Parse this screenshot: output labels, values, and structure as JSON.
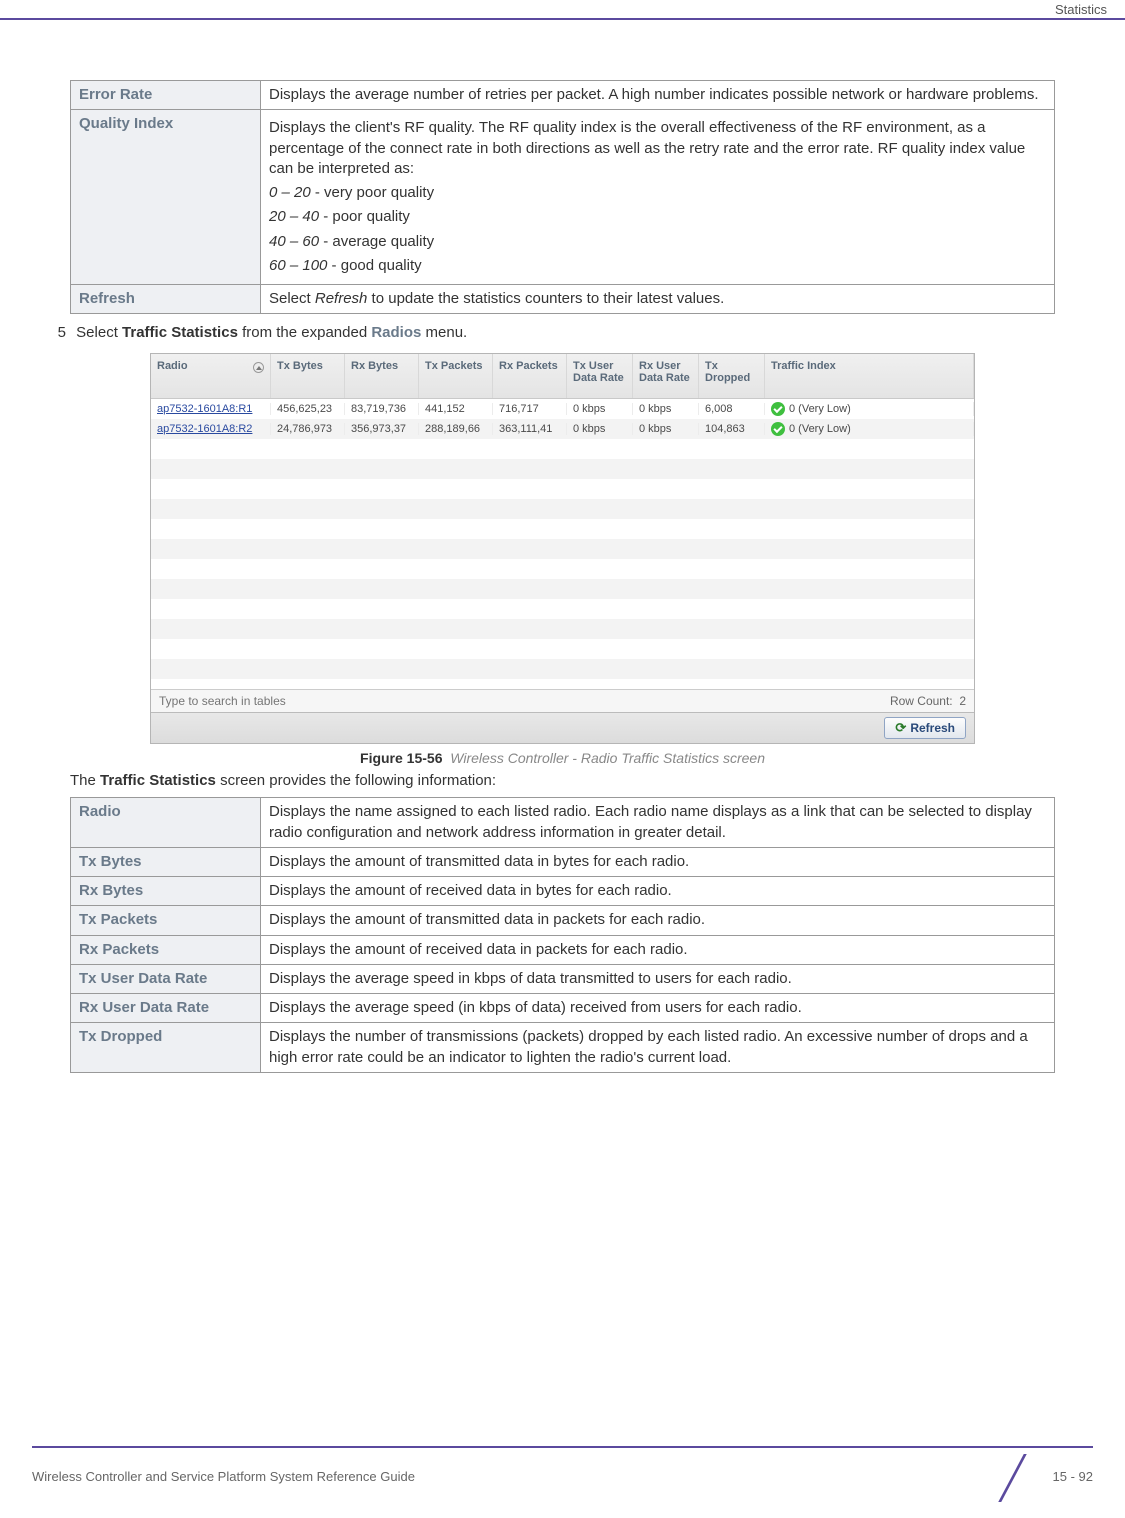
{
  "header": {
    "section_label": "Statistics"
  },
  "table1": {
    "colors": {
      "label_bg": "#eef0f3",
      "label_fg": "#6a7a8a",
      "border": "#999999"
    },
    "rows": [
      {
        "label": "Error Rate",
        "body": "Displays the average number of retries per packet. A high number indicates possible network or hardware problems."
      },
      {
        "label": "Quality Index",
        "intro": "Displays the client's RF quality. The RF quality index is the overall effectiveness of the RF environment, as a percentage of the connect rate in both directions as well as the retry rate and the error rate. RF quality index value can be interpreted as:",
        "ranges": [
          {
            "range": "0 – 20",
            "desc": " - very poor quality"
          },
          {
            "range": "20 – 40",
            "desc": " - poor quality"
          },
          {
            "range": "40 – 60",
            "desc": " - average quality"
          },
          {
            "range": "60 – 100",
            "desc": " - good quality"
          }
        ]
      },
      {
        "label": "Refresh",
        "body_prefix": "Select ",
        "body_em": "Refresh",
        "body_suffix": " to update the statistics counters to their latest values."
      }
    ]
  },
  "step": {
    "number": "5",
    "text_prefix": "Select ",
    "bold": "Traffic Statistics",
    "text_mid": " from the expanded ",
    "gray": "Radios",
    "text_suffix": " menu."
  },
  "screenshot": {
    "headers": [
      "Radio",
      "Tx Bytes",
      "Rx Bytes",
      "Tx Packets",
      "Rx Packets",
      "Tx User Data Rate",
      "Rx User Data Rate",
      "Tx Dropped",
      "Traffic Index"
    ],
    "rows": [
      {
        "radio": "ap7532-1601A8:R1",
        "txb": "456,625,23",
        "rxb": "83,719,736",
        "txp": "441,152",
        "rxp": "716,717",
        "txu": "0 kbps",
        "rxu": "0 kbps",
        "txd": "6,008",
        "ti": "0 (Very Low)"
      },
      {
        "radio": "ap7532-1601A8:R2",
        "txb": "24,786,973",
        "rxb": "356,973,37",
        "txp": "288,189,66",
        "rxp": "363,111,41",
        "txu": "0 kbps",
        "rxu": "0 kbps",
        "txd": "104,863",
        "ti": "0 (Very Low)"
      }
    ],
    "search_placeholder": "Type to search in tables",
    "row_count_label": "Row Count:",
    "row_count_value": "2",
    "refresh_label": "Refresh",
    "colors": {
      "header_bg_top": "#f0f0f0",
      "header_bg_bot": "#e4e4e4",
      "header_fg": "#5a6a7a",
      "link_fg": "#2a4aa0",
      "badge_bg": "#3fbf3f",
      "button_border": "#8fa4c4",
      "button_fg": "#2a4a7a"
    }
  },
  "figure": {
    "label": "Figure 15-56",
    "caption": "Wireless Controller - Radio Traffic Statistics screen"
  },
  "para": {
    "text_prefix": "The ",
    "bold": "Traffic Statistics",
    "text_suffix": " screen provides the following information:"
  },
  "table2": {
    "rows": [
      {
        "label": "Radio",
        "body": "Displays the name assigned to each listed radio. Each radio name displays as a link that can be selected to display radio configuration and network address information in greater detail."
      },
      {
        "label": "Tx Bytes",
        "body": "Displays the amount of transmitted data in bytes for each radio."
      },
      {
        "label": "Rx Bytes",
        "body": "Displays the amount of received data in bytes for each radio."
      },
      {
        "label": "Tx Packets",
        "body": "Displays the amount of transmitted data in packets for each radio."
      },
      {
        "label": "Rx Packets",
        "body": "Displays the amount of received data in packets for each radio."
      },
      {
        "label": "Tx User Data Rate",
        "body": "Displays the average speed in kbps of data transmitted to users for each radio."
      },
      {
        "label": "Rx User Data Rate",
        "body": "Displays the average speed (in kbps of data) received from users for each radio."
      },
      {
        "label": "Tx Dropped",
        "body": "Displays the number of transmissions (packets) dropped by each listed radio. An excessive number of drops and a high error rate could be an indicator to lighten the radio's current load."
      }
    ]
  },
  "footer": {
    "guide": "Wireless Controller and Service Platform System Reference Guide",
    "page": "15 - 92"
  }
}
